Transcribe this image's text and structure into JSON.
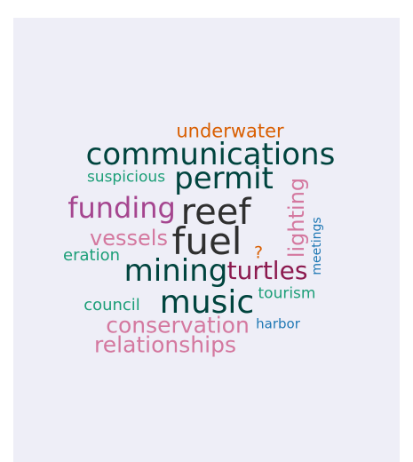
{
  "background_color": "#eeeef7",
  "words": [
    {
      "text": "underwater",
      "color": "#d95f02"
    },
    {
      "text": "communications",
      "color": "#00443e"
    },
    {
      "text": "suspicious",
      "color": "#1b9e77"
    },
    {
      "text": "permit",
      "color": "#00443e"
    },
    {
      "text": "funding",
      "color": "#a5458f"
    },
    {
      "text": "reef",
      "color": "#2f2f2f"
    },
    {
      "text": "lighting",
      "color": "#d4789f"
    },
    {
      "text": "meetings",
      "color": "#1f78b4"
    },
    {
      "text": "vessels",
      "color": "#d4789f"
    },
    {
      "text": "fuel",
      "color": "#2f2f2f"
    },
    {
      "text": "?",
      "color": "#d95f02"
    },
    {
      "text": "eration",
      "color": "#1b9e77"
    },
    {
      "text": "mining",
      "color": "#00443e"
    },
    {
      "text": "turtles",
      "color": "#8c1a4f"
    },
    {
      "text": "tourism",
      "color": "#1b9e77"
    },
    {
      "text": "council",
      "color": "#1b9e77"
    },
    {
      "text": "music",
      "color": "#00443e"
    },
    {
      "text": "conservation",
      "color": "#d4789f"
    },
    {
      "text": "harbor",
      "color": "#1f78b4"
    },
    {
      "text": "relationships",
      "color": "#d4789f"
    }
  ]
}
